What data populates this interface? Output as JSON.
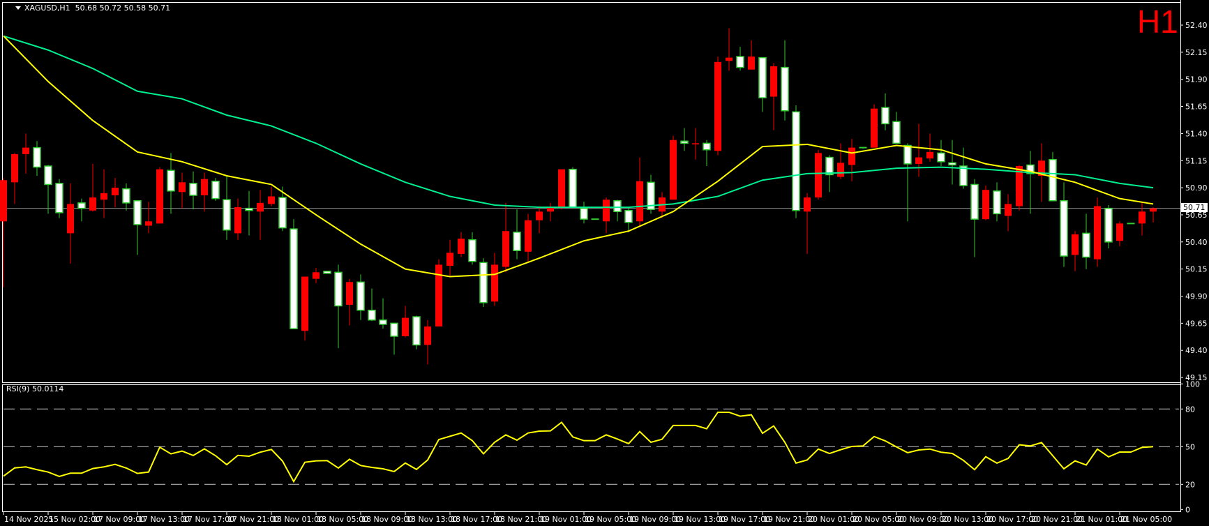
{
  "header": {
    "symbol_timeframe": "XAGUSD,H1",
    "ohlc": "50.68 50.72 50.58 50.71"
  },
  "timeframe_badge": "H1",
  "current_price": "50.71",
  "rsi_title": "RSI(9) 50.0114",
  "colors": {
    "background": "#000000",
    "bull_body": "#ff0000",
    "bear_body": "#ffffff",
    "bear_outline": "#32cd32",
    "ma_fast": "#ffff00",
    "ma_slow": "#00f090",
    "rsi": "#ffff00",
    "price_line": "#8c8c8c",
    "badge": "#ff0000"
  },
  "chart_data": [
    {
      "type": "candlestick",
      "title": "XAGUSD,H1",
      "price_ticks": [
        "52.40",
        "52.15",
        "51.90",
        "51.65",
        "51.40",
        "51.15",
        "50.90",
        "50.65",
        "50.40",
        "50.15",
        "49.90",
        "49.65",
        "49.40",
        "49.15"
      ],
      "ylim": [
        49.15,
        52.4
      ],
      "time_ticks": [
        "14 Nov 2025",
        "15 Nov 02:00",
        "17 Nov 09:00",
        "17 Nov 13:00",
        "17 Nov 17:00",
        "17 Nov 21:00",
        "18 Nov 01:00",
        "18 Nov 05:00",
        "18 Nov 09:00",
        "18 Nov 13:00",
        "18 Nov 17:00",
        "18 Nov 21:00",
        "19 Nov 01:00",
        "19 Nov 05:00",
        "19 Nov 09:00",
        "19 Nov 13:00",
        "19 Nov 17:00",
        "19 Nov 21:00",
        "20 Nov 01:00",
        "20 Nov 05:00",
        "20 Nov 09:00",
        "20 Nov 13:00",
        "20 Nov 17:00",
        "20 Nov 21:00",
        "21 Nov 01:00",
        "21 Nov 05:00"
      ],
      "grid": false,
      "ohlc": [
        [
          50.59,
          50.99,
          49.98,
          50.97
        ],
        [
          50.95,
          51.22,
          50.75,
          51.21
        ],
        [
          51.21,
          51.4,
          51.03,
          51.27
        ],
        [
          51.27,
          51.33,
          51.01,
          51.09
        ],
        [
          51.1,
          51.11,
          50.66,
          50.93
        ],
        [
          50.94,
          50.98,
          50.62,
          50.67
        ],
        [
          50.48,
          50.94,
          50.2,
          50.75
        ],
        [
          50.76,
          50.8,
          50.59,
          50.71
        ],
        [
          50.69,
          51.12,
          50.68,
          50.81
        ],
        [
          50.79,
          51.07,
          50.62,
          50.85
        ],
        [
          50.83,
          50.99,
          50.72,
          50.9
        ],
        [
          50.89,
          50.94,
          50.69,
          50.76
        ],
        [
          50.78,
          50.78,
          50.28,
          50.56
        ],
        [
          50.55,
          50.77,
          50.48,
          50.59
        ],
        [
          50.57,
          51.09,
          50.57,
          51.07
        ],
        [
          51.06,
          51.22,
          50.66,
          50.87
        ],
        [
          50.86,
          51.04,
          50.71,
          50.95
        ],
        [
          50.94,
          51.05,
          50.7,
          50.83
        ],
        [
          50.83,
          51.04,
          50.68,
          50.98
        ],
        [
          50.96,
          50.99,
          50.78,
          50.8
        ],
        [
          50.79,
          51.01,
          50.42,
          50.51
        ],
        [
          50.48,
          50.8,
          50.42,
          50.72
        ],
        [
          50.71,
          50.87,
          50.46,
          50.69
        ],
        [
          50.68,
          50.88,
          50.42,
          50.76
        ],
        [
          50.75,
          50.91,
          50.73,
          50.82
        ],
        [
          50.81,
          50.91,
          50.5,
          50.53
        ],
        [
          50.52,
          50.61,
          49.6,
          49.6
        ],
        [
          49.58,
          50.08,
          49.49,
          50.08
        ],
        [
          50.06,
          50.16,
          50.02,
          50.12
        ],
        [
          50.13,
          50.13,
          50.11,
          50.11
        ],
        [
          50.12,
          50.19,
          49.42,
          49.81
        ],
        [
          49.82,
          50.06,
          49.63,
          50.03
        ],
        [
          50.03,
          50.1,
          49.68,
          49.77
        ],
        [
          49.77,
          49.97,
          49.67,
          49.68
        ],
        [
          49.68,
          49.88,
          49.6,
          49.64
        ],
        [
          49.65,
          49.65,
          49.36,
          49.53
        ],
        [
          49.53,
          49.81,
          49.52,
          49.7
        ],
        [
          49.71,
          49.72,
          49.41,
          49.45
        ],
        [
          49.45,
          49.68,
          49.27,
          49.62
        ],
        [
          49.62,
          50.24,
          49.62,
          50.19
        ],
        [
          50.18,
          50.42,
          50.09,
          50.3
        ],
        [
          50.29,
          50.49,
          50.26,
          50.43
        ],
        [
          50.42,
          50.49,
          50.19,
          50.22
        ],
        [
          50.21,
          50.25,
          49.8,
          49.84
        ],
        [
          49.85,
          50.3,
          49.81,
          50.19
        ],
        [
          50.17,
          50.76,
          50.12,
          50.5
        ],
        [
          50.49,
          50.7,
          50.24,
          50.32
        ],
        [
          50.31,
          50.66,
          50.21,
          50.6
        ],
        [
          50.6,
          50.73,
          50.48,
          50.68
        ],
        [
          50.68,
          50.76,
          50.59,
          50.72
        ],
        [
          50.72,
          51.07,
          50.7,
          51.07
        ],
        [
          51.07,
          51.09,
          50.71,
          50.72
        ],
        [
          50.71,
          50.77,
          50.57,
          50.61
        ],
        [
          50.61,
          50.61,
          50.61,
          50.61
        ],
        [
          50.59,
          50.81,
          50.48,
          50.79
        ],
        [
          50.78,
          50.79,
          50.59,
          50.68
        ],
        [
          50.69,
          50.72,
          50.49,
          50.58
        ],
        [
          50.59,
          51.18,
          50.55,
          50.96
        ],
        [
          50.95,
          51.02,
          50.66,
          50.7
        ],
        [
          50.68,
          50.86,
          50.62,
          50.81
        ],
        [
          50.79,
          51.38,
          50.79,
          51.34
        ],
        [
          51.33,
          51.45,
          51.24,
          51.31
        ],
        [
          51.3,
          51.45,
          51.16,
          51.31
        ],
        [
          51.31,
          51.34,
          51.1,
          51.25
        ],
        [
          51.24,
          52.11,
          51.2,
          52.06
        ],
        [
          52.07,
          52.37,
          51.98,
          52.1
        ],
        [
          52.11,
          52.2,
          51.98,
          52.01
        ],
        [
          51.99,
          52.26,
          51.99,
          52.11
        ],
        [
          52.1,
          52.1,
          51.6,
          51.73
        ],
        [
          51.74,
          52.05,
          51.43,
          52.02
        ],
        [
          52.01,
          52.26,
          51.52,
          51.61
        ],
        [
          51.6,
          51.66,
          50.62,
          50.69
        ],
        [
          50.68,
          50.85,
          50.29,
          50.81
        ],
        [
          50.81,
          51.25,
          50.79,
          51.22
        ],
        [
          51.18,
          51.2,
          50.86,
          51.02
        ],
        [
          51.0,
          51.31,
          50.98,
          51.13
        ],
        [
          51.11,
          51.35,
          50.96,
          51.27
        ],
        [
          51.27,
          51.27,
          51.26,
          51.27
        ],
        [
          51.27,
          51.67,
          51.27,
          51.63
        ],
        [
          51.64,
          51.77,
          51.43,
          51.49
        ],
        [
          51.51,
          51.6,
          51.31,
          51.31
        ],
        [
          51.29,
          51.31,
          50.59,
          51.12
        ],
        [
          51.12,
          51.49,
          51.0,
          51.18
        ],
        [
          51.17,
          51.4,
          51.14,
          51.23
        ],
        [
          51.22,
          51.34,
          51.1,
          51.14
        ],
        [
          51.13,
          51.34,
          50.93,
          51.11
        ],
        [
          51.1,
          51.27,
          50.89,
          50.92
        ],
        [
          50.93,
          50.98,
          50.26,
          50.61
        ],
        [
          50.61,
          50.92,
          50.6,
          50.88
        ],
        [
          50.87,
          50.95,
          50.59,
          50.66
        ],
        [
          50.64,
          50.84,
          50.5,
          50.75
        ],
        [
          50.73,
          51.11,
          50.69,
          51.1
        ],
        [
          51.11,
          51.24,
          50.66,
          51.03
        ],
        [
          51.01,
          51.31,
          50.77,
          51.15
        ],
        [
          51.16,
          51.23,
          50.78,
          50.78
        ],
        [
          50.78,
          50.95,
          50.17,
          50.27
        ],
        [
          50.28,
          50.5,
          50.13,
          50.47
        ],
        [
          50.48,
          50.66,
          50.15,
          50.26
        ],
        [
          50.24,
          50.81,
          50.17,
          50.73
        ],
        [
          50.71,
          50.74,
          50.34,
          50.4
        ],
        [
          50.41,
          50.59,
          50.36,
          50.57
        ],
        [
          50.57,
          50.57,
          50.57,
          50.57
        ],
        [
          50.57,
          50.76,
          50.46,
          50.68
        ],
        [
          50.68,
          50.72,
          50.58,
          50.71
        ]
      ],
      "ma_fast": [
        52.3,
        51.88,
        51.52,
        51.23,
        51.14,
        51.01,
        50.93,
        50.65,
        50.38,
        50.15,
        50.08,
        50.1,
        50.25,
        50.41,
        50.5,
        50.68,
        50.96,
        51.28,
        51.3,
        51.22,
        51.29,
        51.25,
        51.12,
        51.05,
        50.95,
        50.8,
        50.75
      ],
      "ma_slow": [
        52.3,
        52.17,
        52.0,
        51.79,
        51.72,
        51.57,
        51.47,
        51.31,
        51.12,
        50.95,
        50.82,
        50.74,
        50.72,
        50.72,
        50.72,
        50.75,
        50.82,
        50.97,
        51.03,
        51.04,
        51.08,
        51.09,
        51.07,
        51.04,
        51.02,
        50.94,
        50.9
      ],
      "last_price": 50.71
    },
    {
      "type": "line",
      "title": "RSI(9) 50.0114",
      "ylim": [
        0,
        100
      ],
      "y_ticks": [
        "100",
        "80",
        "50",
        "20",
        "0"
      ],
      "levels": [
        80,
        50,
        20
      ],
      "values": [
        26.5,
        33.1,
        33.9,
        31.7,
        29.8,
        26.3,
        28.9,
        28.9,
        32.6,
        33.9,
        35.9,
        33.0,
        28.7,
        29.8,
        49.6,
        44.3,
        46.5,
        43.0,
        48.3,
        42.8,
        35.7,
        43.1,
        42.4,
        45.6,
        47.8,
        38.5,
        22.2,
        37.6,
        38.7,
        38.9,
        33.0,
        40.0,
        35.0,
        33.5,
        32.4,
        30.2,
        37.0,
        31.9,
        39.4,
        55.7,
        58.3,
        60.9,
        54.8,
        44.3,
        53.5,
        59.4,
        55.2,
        60.9,
        62.4,
        62.6,
        69.4,
        57.8,
        54.8,
        54.8,
        59.4,
        56.1,
        52.4,
        62.0,
        53.5,
        55.9,
        66.9,
        66.9,
        66.9,
        64.3,
        77.4,
        77.4,
        74.3,
        75.4,
        60.7,
        66.5,
        53.5,
        36.9,
        39.4,
        48.1,
        44.6,
        47.6,
        50.2,
        50.6,
        58.1,
        54.6,
        49.8,
        45.2,
        47.4,
        48.1,
        45.6,
        44.6,
        39.1,
        31.7,
        42.0,
        36.9,
        40.6,
        51.5,
        50.6,
        53.3,
        42.8,
        32.4,
        38.7,
        35.4,
        48.1,
        41.9,
        45.7,
        45.7,
        49.4,
        50.0
      ]
    }
  ]
}
